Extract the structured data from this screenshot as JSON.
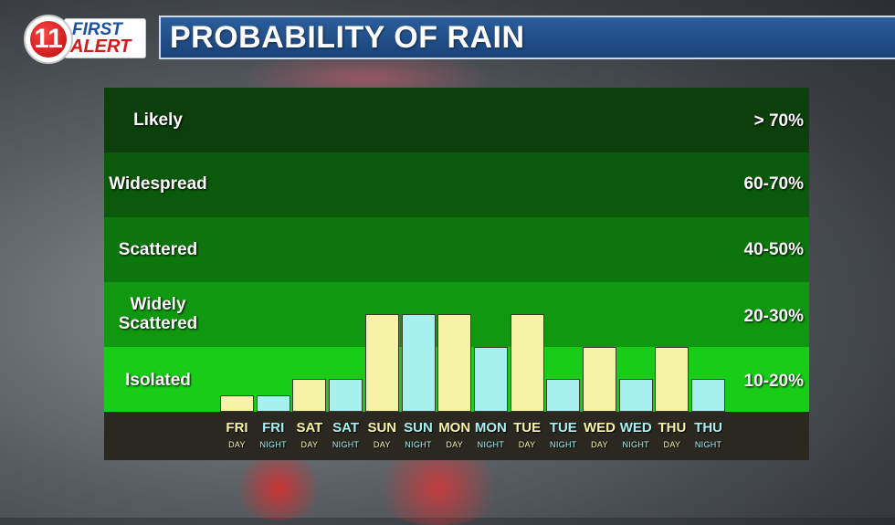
{
  "header": {
    "title": "PROBABILITY OF RAIN"
  },
  "logo": {
    "number": "11",
    "word1": "FIRST",
    "word2": "ALERT"
  },
  "colors": {
    "day_bar": "#f7f3a6",
    "night_bar": "#a6f1f0",
    "band_likely": "#0d3f0d",
    "band_widespread": "#0b5a0b",
    "band_scattered": "#0d760d",
    "band_widely_scattered": "#109810",
    "band_isolated": "#18cc18"
  },
  "chart_data": {
    "type": "bar",
    "title": "PROBABILITY OF RAIN",
    "bands": [
      {
        "label": "Likely",
        "range": "> 70%"
      },
      {
        "label": "Widespread",
        "range": "60-70%"
      },
      {
        "label": "Scattered",
        "range": "40-50%"
      },
      {
        "label": "Widely Scattered",
        "range": "20-30%"
      },
      {
        "label": "Isolated",
        "range": "10-20%"
      }
    ],
    "categories": [
      {
        "day": "FRI",
        "period": "DAY"
      },
      {
        "day": "FRI",
        "period": "NIGHT"
      },
      {
        "day": "SAT",
        "period": "DAY"
      },
      {
        "day": "SAT",
        "period": "NIGHT"
      },
      {
        "day": "SUN",
        "period": "DAY"
      },
      {
        "day": "SUN",
        "period": "NIGHT"
      },
      {
        "day": "MON",
        "period": "DAY"
      },
      {
        "day": "MON",
        "period": "NIGHT"
      },
      {
        "day": "TUE",
        "period": "DAY"
      },
      {
        "day": "TUE",
        "period": "NIGHT"
      },
      {
        "day": "WED",
        "period": "DAY"
      },
      {
        "day": "WED",
        "period": "NIGHT"
      },
      {
        "day": "THU",
        "period": "DAY"
      },
      {
        "day": "THU",
        "period": "NIGHT"
      }
    ],
    "values": [
      5,
      5,
      10,
      10,
      30,
      30,
      30,
      20,
      30,
      10,
      20,
      10,
      20,
      10
    ],
    "ylim": [
      0,
      100
    ],
    "grid": false,
    "legend": "none"
  }
}
